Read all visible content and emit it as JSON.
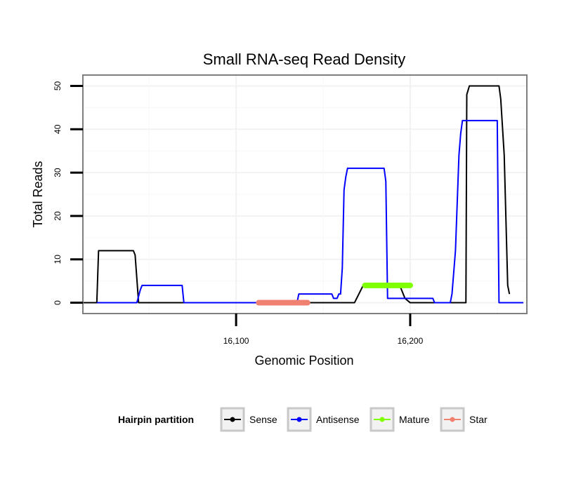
{
  "chart_data": {
    "type": "line",
    "title": "Small RNA-seq Read Density",
    "xlabel": "Genomic Position",
    "ylabel": "Total Reads",
    "xlim": [
      16012,
      16267
    ],
    "ylim": [
      -2.5,
      52.5
    ],
    "x_ticks": [
      16100,
      16200
    ],
    "x_tick_labels": [
      "16,100",
      "16,200"
    ],
    "y_ticks": [
      0,
      10,
      20,
      30,
      40,
      50
    ],
    "y_tick_labels": [
      "0",
      "10",
      "20",
      "30",
      "40",
      "50"
    ],
    "grid": true,
    "legend": {
      "title": "Hairpin partition",
      "position": "bottom",
      "entries": [
        "Sense",
        "Antisense",
        "Mature",
        "Star"
      ]
    },
    "series": [
      {
        "name": "Sense",
        "color": "#000000",
        "points": [
          [
            16012,
            0
          ],
          [
            16020,
            0
          ],
          [
            16021,
            12
          ],
          [
            16041,
            12
          ],
          [
            16042,
            11
          ],
          [
            16044,
            0
          ],
          [
            16160,
            0
          ],
          [
            16168,
            0
          ],
          [
            16173,
            4
          ],
          [
            16177,
            4
          ],
          [
            16194,
            4
          ],
          [
            16197,
            1
          ],
          [
            16200,
            0
          ],
          [
            16226,
            0
          ],
          [
            16232,
            0
          ],
          [
            16232.5,
            48
          ],
          [
            16234,
            50
          ],
          [
            16251,
            50
          ],
          [
            16252,
            47
          ],
          [
            16254,
            34
          ],
          [
            16256,
            4
          ],
          [
            16257,
            2
          ]
        ]
      },
      {
        "name": "Antisense",
        "color": "#0000ff",
        "points": [
          [
            16020,
            0
          ],
          [
            16043,
            0
          ],
          [
            16045,
            3
          ],
          [
            16046,
            4
          ],
          [
            16069,
            4
          ],
          [
            16070,
            0
          ],
          [
            16135,
            0
          ],
          [
            16136,
            2
          ],
          [
            16155,
            2
          ],
          [
            16156,
            1
          ],
          [
            16158,
            1
          ],
          [
            16159,
            2
          ],
          [
            16160,
            2
          ],
          [
            16161,
            8
          ],
          [
            16162,
            26
          ],
          [
            16163,
            29
          ],
          [
            16164,
            31
          ],
          [
            16185,
            31
          ],
          [
            16186,
            28
          ],
          [
            16187,
            1
          ],
          [
            16202,
            1
          ],
          [
            16213,
            1
          ],
          [
            16214,
            0
          ],
          [
            16223,
            0
          ],
          [
            16224,
            2
          ],
          [
            16226,
            12
          ],
          [
            16228,
            34
          ],
          [
            16229,
            39
          ],
          [
            16230,
            42
          ],
          [
            16250,
            42
          ],
          [
            16251,
            0
          ],
          [
            16265,
            0
          ]
        ]
      },
      {
        "name": "Mature",
        "color": "#7fff00",
        "points": [
          [
            16174,
            4
          ],
          [
            16200,
            4
          ]
        ]
      },
      {
        "name": "Star",
        "color": "#f08070",
        "points": [
          [
            16113,
            0
          ],
          [
            16141,
            0
          ]
        ]
      }
    ]
  }
}
